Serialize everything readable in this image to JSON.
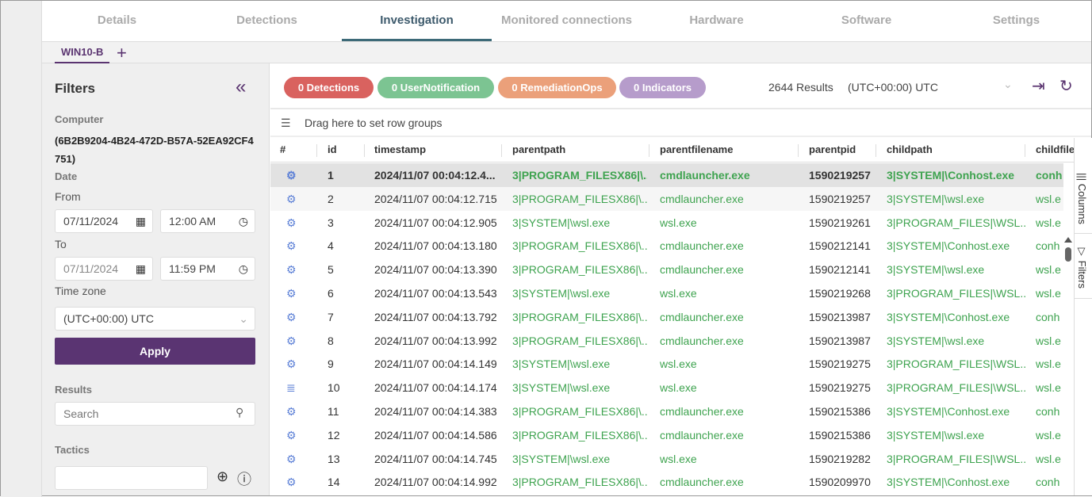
{
  "tabs": [
    "Details",
    "Detections",
    "Investigation",
    "Monitored connections",
    "Hardware",
    "Software",
    "Settings"
  ],
  "active_tab": "Investigation",
  "subtab": "WIN10-B",
  "filters": {
    "title": "Filters",
    "computer_label": "Computer",
    "computer_value": "(6B2B9204-4B24-472D-B57A-52EA92CF4751)",
    "date_label": "Date",
    "from_label": "From",
    "from_date": "07/11/2024",
    "from_time": "12:00 AM",
    "to_label": "To",
    "to_date": "07/11/2024",
    "to_time": "11:59 PM",
    "timezone_label": "Time zone",
    "timezone_value": "(UTC+00:00) UTC",
    "apply_label": "Apply",
    "results_label": "Results",
    "search_placeholder": "Search",
    "tactics_label": "Tactics"
  },
  "toolbar": {
    "pills": [
      {
        "label": "0 Detections",
        "color": "#d9625f"
      },
      {
        "label": "0 UserNotification",
        "color": "#7cc492"
      },
      {
        "label": "0 RemediationOps",
        "color": "#eba07a"
      },
      {
        "label": "0 Indicators",
        "color": "#b69ccb"
      }
    ],
    "results": "2644 Results",
    "timezone": "(UTC+00:00) UTC"
  },
  "group_bar": "Drag here to set row groups",
  "columns": [
    "#",
    "id",
    "timestamp",
    "parentpath",
    "parentfilename",
    "parentpid",
    "childpath",
    "childfilen"
  ],
  "side_buttons": {
    "columns": "Columns",
    "filters": "Filters"
  },
  "rows": [
    {
      "icon": "gear",
      "id": "1",
      "timestamp": "2024/11/07 00:04:12.4...",
      "parentpath": "3|PROGRAM_FILESX86|\\...",
      "parentfilename": "cmdlauncher.exe",
      "parentpid": "1590219257",
      "childpath": "3|SYSTEM|\\Conhost.exe",
      "childfilename": "conh"
    },
    {
      "icon": "gear",
      "id": "2",
      "timestamp": "2024/11/07 00:04:12.715",
      "parentpath": "3|PROGRAM_FILESX86|\\...",
      "parentfilename": "cmdlauncher.exe",
      "parentpid": "1590219257",
      "childpath": "3|SYSTEM|\\wsl.exe",
      "childfilename": "wsl.e"
    },
    {
      "icon": "gear",
      "id": "3",
      "timestamp": "2024/11/07 00:04:12.905",
      "parentpath": "3|SYSTEM|\\wsl.exe",
      "parentfilename": "wsl.exe",
      "parentpid": "1590219261",
      "childpath": "3|PROGRAM_FILES|\\WSL...",
      "childfilename": "wsl.e"
    },
    {
      "icon": "gear",
      "id": "4",
      "timestamp": "2024/11/07 00:04:13.180",
      "parentpath": "3|PROGRAM_FILESX86|\\...",
      "parentfilename": "cmdlauncher.exe",
      "parentpid": "1590212141",
      "childpath": "3|SYSTEM|\\Conhost.exe",
      "childfilename": "conh"
    },
    {
      "icon": "gear",
      "id": "5",
      "timestamp": "2024/11/07 00:04:13.390",
      "parentpath": "3|PROGRAM_FILESX86|\\...",
      "parentfilename": "cmdlauncher.exe",
      "parentpid": "1590212141",
      "childpath": "3|SYSTEM|\\wsl.exe",
      "childfilename": "wsl.e"
    },
    {
      "icon": "gear",
      "id": "6",
      "timestamp": "2024/11/07 00:04:13.543",
      "parentpath": "3|SYSTEM|\\wsl.exe",
      "parentfilename": "wsl.exe",
      "parentpid": "1590219268",
      "childpath": "3|PROGRAM_FILES|\\WSL...",
      "childfilename": "wsl.e"
    },
    {
      "icon": "gear",
      "id": "7",
      "timestamp": "2024/11/07 00:04:13.792",
      "parentpath": "3|PROGRAM_FILESX86|\\...",
      "parentfilename": "cmdlauncher.exe",
      "parentpid": "1590213987",
      "childpath": "3|SYSTEM|\\Conhost.exe",
      "childfilename": "conh"
    },
    {
      "icon": "gear",
      "id": "8",
      "timestamp": "2024/11/07 00:04:13.992",
      "parentpath": "3|PROGRAM_FILESX86|\\...",
      "parentfilename": "cmdlauncher.exe",
      "parentpid": "1590213987",
      "childpath": "3|SYSTEM|\\wsl.exe",
      "childfilename": "wsl.e"
    },
    {
      "icon": "gear",
      "id": "9",
      "timestamp": "2024/11/07 00:04:14.149",
      "parentpath": "3|SYSTEM|\\wsl.exe",
      "parentfilename": "wsl.exe",
      "parentpid": "1590219275",
      "childpath": "3|PROGRAM_FILES|\\WSL...",
      "childfilename": "wsl.e"
    },
    {
      "icon": "list",
      "id": "10",
      "timestamp": "2024/11/07 00:04:14.174",
      "parentpath": "3|SYSTEM|\\wsl.exe",
      "parentfilename": "wsl.exe",
      "parentpid": "1590219275",
      "childpath": "3|PROGRAM_FILES|\\WSL...",
      "childfilename": "wsl.e"
    },
    {
      "icon": "gear",
      "id": "11",
      "timestamp": "2024/11/07 00:04:14.383",
      "parentpath": "3|PROGRAM_FILESX86|\\...",
      "parentfilename": "cmdlauncher.exe",
      "parentpid": "1590215386",
      "childpath": "3|SYSTEM|\\Conhost.exe",
      "childfilename": "conh"
    },
    {
      "icon": "gear",
      "id": "12",
      "timestamp": "2024/11/07 00:04:14.586",
      "parentpath": "3|PROGRAM_FILESX86|\\...",
      "parentfilename": "cmdlauncher.exe",
      "parentpid": "1590215386",
      "childpath": "3|SYSTEM|\\wsl.exe",
      "childfilename": "wsl.e"
    },
    {
      "icon": "gear",
      "id": "13",
      "timestamp": "2024/11/07 00:04:14.745",
      "parentpath": "3|SYSTEM|\\wsl.exe",
      "parentfilename": "wsl.exe",
      "parentpid": "1590219282",
      "childpath": "3|PROGRAM_FILES|\\WSL...",
      "childfilename": "wsl.e"
    },
    {
      "icon": "gear",
      "id": "14",
      "timestamp": "2024/11/07 00:04:14.992",
      "parentpath": "3|PROGRAM_FILESX86|\\...",
      "parentfilename": "cmdlauncher.exe",
      "parentpid": "1590209970",
      "childpath": "3|SYSTEM|\\Conhost.exe",
      "childfilename": "conh"
    }
  ]
}
